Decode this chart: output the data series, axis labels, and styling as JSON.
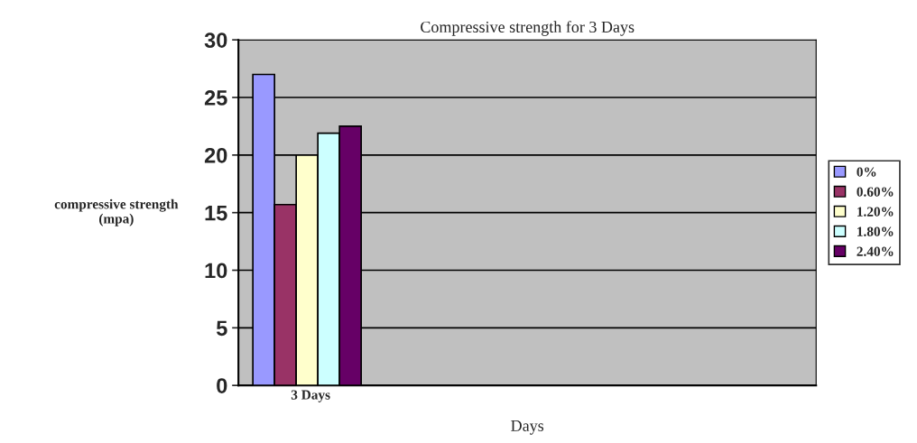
{
  "chart_data": {
    "type": "bar",
    "title": "Compressive strength for 3 Days",
    "xlabel": "Days",
    "ylabel": "compressive strength\n(mpa)",
    "categories": [
      "3 Days",
      null,
      null,
      null
    ],
    "series": [
      {
        "name": "0%",
        "color": "#9999ff",
        "values": [
          27,
          null,
          null,
          null
        ]
      },
      {
        "name": "0.60%",
        "color": "#993366",
        "values": [
          15.7,
          null,
          null,
          null
        ]
      },
      {
        "name": "1.20%",
        "color": "#ffffcc",
        "values": [
          20,
          null,
          null,
          null
        ]
      },
      {
        "name": "1.80%",
        "color": "#ccffff",
        "values": [
          21.9,
          null,
          null,
          null
        ]
      },
      {
        "name": "2.40%",
        "color": "#660066",
        "values": [
          22.5,
          null,
          null,
          null
        ]
      }
    ],
    "ylim": [
      0,
      30
    ],
    "yticks": [
      0,
      5,
      10,
      15,
      20,
      25,
      30
    ],
    "grid": "y",
    "legend": "right"
  }
}
